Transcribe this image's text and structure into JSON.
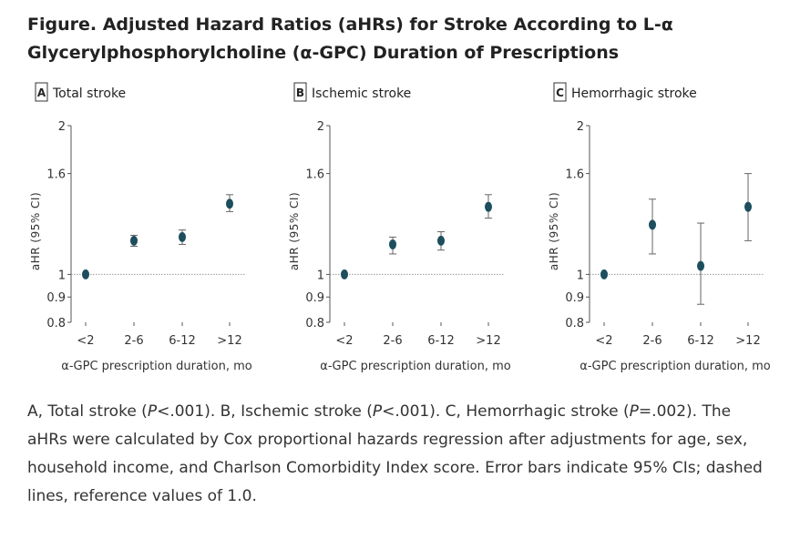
{
  "figure": {
    "title": "Figure.  Adjusted Hazard Ratios (aHRs) for Stroke According to L-α Glycerylphosphorylcholine (α-GPC) Duration of Prescriptions",
    "caption_parts": [
      "A, Total stroke (",
      "P",
      "<.001). B, Ischemic stroke (",
      "P",
      "<.001). C, Hemorrhagic stroke (",
      "P",
      "=.002). The aHRs were calculated by Cox proportional hazards regression after adjustments for age, sex, household income, and Charlson Comorbidity Index score. Error bars indicate 95% CIs; dashed lines, reference values of 1.0."
    ]
  },
  "colors": {
    "point": "#1d4e5e",
    "axis": "#555555",
    "reference_line": "#999999",
    "errorbar": "#666666"
  },
  "chart_data": [
    {
      "type": "scatter",
      "panel_letter": "A",
      "title": "Total stroke",
      "xlabel": "α-GPC prescription duration, mo",
      "ylabel": "aHR (95% CI)",
      "y_scale": "log",
      "ylim": [
        0.8,
        2
      ],
      "y_ticks": [
        0.8,
        0.9,
        1,
        1.6,
        2
      ],
      "y_tick_labels": [
        "0.8",
        "0.9",
        "1",
        "1.6",
        "2"
      ],
      "reference_line": 1.0,
      "categories": [
        "<2",
        "2-6",
        "6-12",
        ">12"
      ],
      "values": [
        1.0,
        1.17,
        1.19,
        1.39
      ],
      "ci_low": [
        1.0,
        1.14,
        1.15,
        1.34
      ],
      "ci_high": [
        1.0,
        1.2,
        1.23,
        1.45
      ]
    },
    {
      "type": "scatter",
      "panel_letter": "B",
      "title": "Ischemic stroke",
      "xlabel": "α-GPC prescription duration, mo",
      "ylabel": "aHR (95% CI)",
      "y_scale": "log",
      "ylim": [
        0.8,
        2
      ],
      "y_ticks": [
        0.8,
        0.9,
        1,
        1.6,
        2
      ],
      "y_tick_labels": [
        "0.8",
        "0.9",
        "1",
        "1.6",
        "2"
      ],
      "reference_line": 1.0,
      "categories": [
        "<2",
        "2-6",
        "6-12",
        ">12"
      ],
      "values": [
        1.0,
        1.15,
        1.17,
        1.37
      ],
      "ci_low": [
        1.0,
        1.1,
        1.12,
        1.3
      ],
      "ci_high": [
        1.0,
        1.19,
        1.22,
        1.45
      ]
    },
    {
      "type": "scatter",
      "panel_letter": "C",
      "title": "Hemorrhagic stroke",
      "xlabel": "α-GPC prescription duration, mo",
      "ylabel": "aHR (95% CI)",
      "y_scale": "log",
      "ylim": [
        0.8,
        2
      ],
      "y_ticks": [
        0.8,
        0.9,
        1,
        1.6,
        2
      ],
      "y_tick_labels": [
        "0.8",
        "0.9",
        "1",
        "1.6",
        "2"
      ],
      "reference_line": 1.0,
      "categories": [
        "<2",
        "2-6",
        "6-12",
        ">12"
      ],
      "values": [
        1.0,
        1.26,
        1.04,
        1.37
      ],
      "ci_low": [
        1.0,
        1.1,
        0.87,
        1.17
      ],
      "ci_high": [
        1.0,
        1.42,
        1.27,
        1.6
      ]
    }
  ]
}
